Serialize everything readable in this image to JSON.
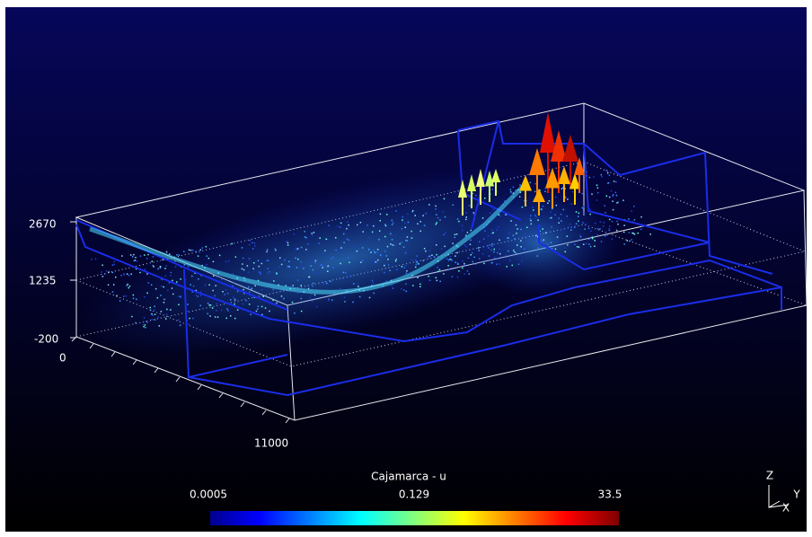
{
  "axes": {
    "z_labels": [
      "2670",
      "1235",
      "-200"
    ],
    "x_labels": [
      "0",
      "11000"
    ]
  },
  "colorbar": {
    "title": "Cajamarca - u",
    "labels": [
      "0.0005",
      "0.129",
      "33.5"
    ]
  },
  "triad": {
    "z": "Z",
    "y": "Y",
    "x": "X"
  }
}
